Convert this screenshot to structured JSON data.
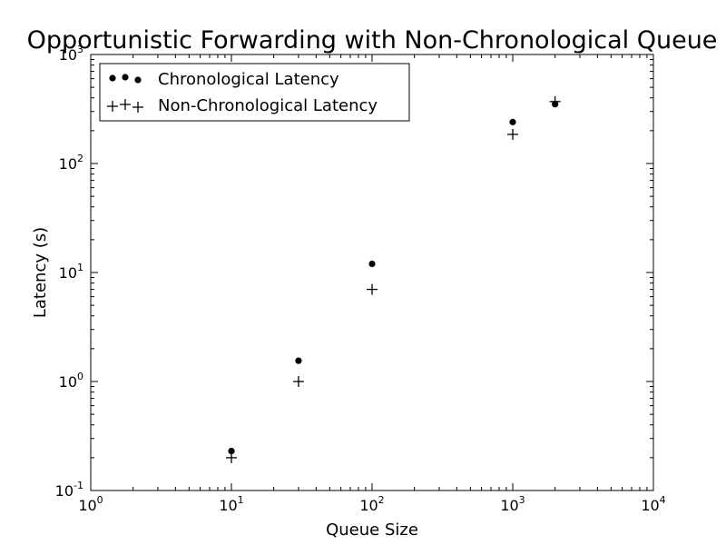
{
  "chart_data": {
    "type": "scatter",
    "title": "Opportunistic Forwarding with Non-Chronological Queue",
    "xlabel": "Queue Size",
    "ylabel": "Latency (s)",
    "xscale": "log",
    "yscale": "log",
    "xlim": [
      1,
      10000
    ],
    "ylim": [
      0.1,
      1000
    ],
    "x_ticks": [
      {
        "base": "10",
        "exp": "0",
        "value": 1
      },
      {
        "base": "10",
        "exp": "1",
        "value": 10
      },
      {
        "base": "10",
        "exp": "2",
        "value": 100
      },
      {
        "base": "10",
        "exp": "3",
        "value": 1000
      },
      {
        "base": "10",
        "exp": "4",
        "value": 10000
      }
    ],
    "y_ticks": [
      {
        "base": "10",
        "exp": "-1",
        "value": 0.1
      },
      {
        "base": "10",
        "exp": "0",
        "value": 1
      },
      {
        "base": "10",
        "exp": "1",
        "value": 10
      },
      {
        "base": "10",
        "exp": "2",
        "value": 100
      },
      {
        "base": "10",
        "exp": "3",
        "value": 1000
      }
    ],
    "grid": false,
    "legend": "top-left",
    "series": [
      {
        "name": "Chronological Latency",
        "marker": "dot",
        "color": "#000000",
        "points": [
          {
            "x": 10,
            "y": 0.23
          },
          {
            "x": 30,
            "y": 1.55
          },
          {
            "x": 100,
            "y": 12
          },
          {
            "x": 1000,
            "y": 240
          },
          {
            "x": 2000,
            "y": 350
          }
        ]
      },
      {
        "name": "Non-Chronological Latency",
        "marker": "plus",
        "color": "#000000",
        "points": [
          {
            "x": 10,
            "y": 0.2
          },
          {
            "x": 30,
            "y": 1.0
          },
          {
            "x": 100,
            "y": 7
          },
          {
            "x": 1000,
            "y": 185
          },
          {
            "x": 2000,
            "y": 370
          }
        ]
      }
    ]
  }
}
